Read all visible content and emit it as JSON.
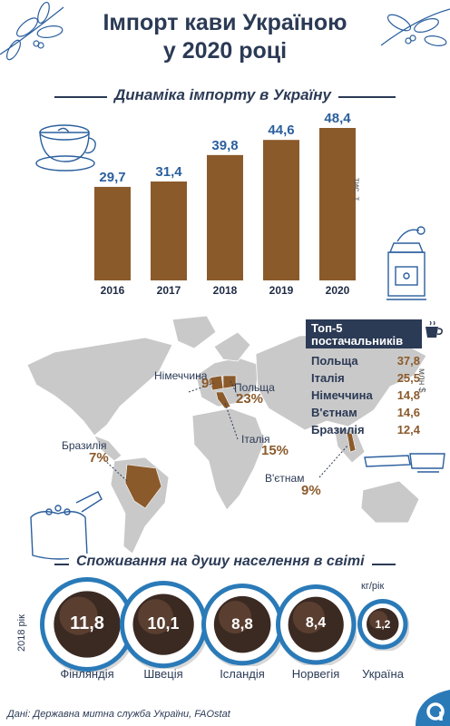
{
  "title_line1": "Імпорт кави Україною",
  "title_line2": "у 2020 році",
  "import_section_title": "Динаміка імпорту в Україну",
  "import_unit": "тис. т",
  "chart_data": [
    {
      "type": "bar",
      "title": "Динаміка імпорту в Україну",
      "categories": [
        "2016",
        "2017",
        "2018",
        "2019",
        "2020"
      ],
      "values": [
        29.7,
        31.4,
        39.8,
        44.6,
        48.4
      ],
      "value_labels": [
        "29,7",
        "31,4",
        "39,8",
        "44,6",
        "48,4"
      ],
      "ylabel": "тис. т",
      "color": "#8b5a2b",
      "label_color": "#2b5f9e"
    },
    {
      "type": "table",
      "title": "Топ-5 постачальників",
      "unit": "млн $",
      "categories": [
        "Польща",
        "Італія",
        "Німеччина",
        "В'єтнам",
        "Бразилія"
      ],
      "values": [
        37.8,
        25.5,
        14.8,
        14.6,
        12.4
      ],
      "value_labels": [
        "37,8",
        "25,5",
        "14,8",
        "14,6",
        "12,4"
      ]
    },
    {
      "type": "bar",
      "title": "Споживання на душу населення в світі",
      "subtitle": "2018 рік",
      "unit": "кг/рік",
      "categories": [
        "Фінляндія",
        "Швеція",
        "Ісландія",
        "Норвегія",
        "Україна"
      ],
      "values": [
        11.8,
        10.1,
        8.8,
        8.4,
        1.2
      ],
      "value_labels": [
        "11,8",
        "10,1",
        "8,8",
        "8,4",
        "1,2"
      ]
    }
  ],
  "map": {
    "shares": [
      {
        "country": "Німеччина",
        "pct": "9%"
      },
      {
        "country": "Польща",
        "pct": "23%"
      },
      {
        "country": "Італія",
        "pct": "15%"
      },
      {
        "country": "Бразилія",
        "pct": "7%"
      },
      {
        "country": "В'єтнам",
        "pct": "9%"
      }
    ]
  },
  "top5_title": "Топ-5 постачальників",
  "top5_unit": "млн $",
  "consumption_title": "Споживання на душу населення в світі",
  "consumption_year": "2018 рік",
  "consumption_unit": "кг/рік",
  "footer": "Дані: Державна митна служба України, FAOstat",
  "colors": {
    "navy": "#2b3a55",
    "brown": "#8b5a2b",
    "blue": "#2b5f9e",
    "cup_ring": "#2a7ab8",
    "map_gray": "#c9c9c9"
  }
}
